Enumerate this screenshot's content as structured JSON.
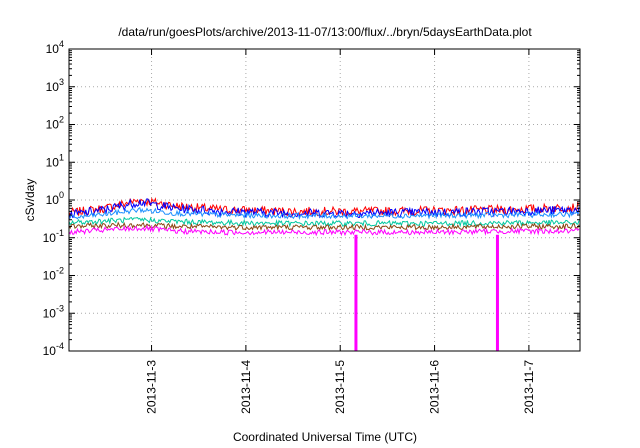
{
  "chart_data": {
    "type": "line",
    "title": "/data/run/goesPlots/archive/2013-11-07/13:00/flux/../bryn/5daysEarthData.plot",
    "xlabel": "Coordinated Universal Time (UTC)",
    "ylabel": "cSv/day",
    "yscale": "log",
    "ylim": [
      0.0001,
      10000
    ],
    "xlim": [
      "2013-11-02T03:00",
      "2013-11-07T13:00"
    ],
    "x_ticks": [
      "2013-11-3",
      "2013-11-4",
      "2013-11-5",
      "2013-11-6",
      "2013-11-7"
    ],
    "y_ticks": [
      {
        "base": "10",
        "exp": "-4"
      },
      {
        "base": "10",
        "exp": "-3"
      },
      {
        "base": "10",
        "exp": "-2"
      },
      {
        "base": "10",
        "exp": "-1"
      },
      {
        "base": "10",
        "exp": "0"
      },
      {
        "base": "10",
        "exp": "1"
      },
      {
        "base": "10",
        "exp": "2"
      },
      {
        "base": "10",
        "exp": "3"
      },
      {
        "base": "10",
        "exp": "4"
      }
    ],
    "grid": true,
    "legend": "none",
    "series": [
      {
        "color": "#ff0000",
        "x": [
          "2013-11-02T03:00",
          "2013-11-02T12:00",
          "2013-11-02T21:00",
          "2013-11-03T06:00",
          "2013-11-03T18:00",
          "2013-11-04T12:00",
          "2013-11-05T06:00",
          "2013-11-06T00:00",
          "2013-11-06T18:00",
          "2013-11-07T13:00"
        ],
        "y": [
          0.45,
          0.6,
          1.0,
          0.7,
          0.55,
          0.5,
          0.5,
          0.52,
          0.55,
          0.65
        ]
      },
      {
        "color": "#0000ff",
        "x": [
          "2013-11-02T03:00",
          "2013-11-02T12:00",
          "2013-11-02T21:00",
          "2013-11-03T06:00",
          "2013-11-03T18:00",
          "2013-11-04T12:00",
          "2013-11-05T06:00",
          "2013-11-06T00:00",
          "2013-11-06T18:00",
          "2013-11-07T13:00"
        ],
        "y": [
          0.4,
          0.55,
          0.9,
          0.6,
          0.5,
          0.45,
          0.45,
          0.47,
          0.5,
          0.55
        ]
      },
      {
        "color": "#1e90ff",
        "x": [
          "2013-11-02T03:00",
          "2013-11-02T12:00",
          "2013-11-02T21:00",
          "2013-11-03T06:00",
          "2013-11-03T18:00",
          "2013-11-04T12:00",
          "2013-11-05T06:00",
          "2013-11-06T00:00",
          "2013-11-06T18:00",
          "2013-11-07T13:00"
        ],
        "y": [
          0.33,
          0.42,
          0.55,
          0.45,
          0.4,
          0.38,
          0.38,
          0.39,
          0.4,
          0.42
        ]
      },
      {
        "color": "#00c8a0",
        "x": [
          "2013-11-02T03:00",
          "2013-11-02T12:00",
          "2013-11-02T21:00",
          "2013-11-03T06:00",
          "2013-11-03T18:00",
          "2013-11-04T12:00",
          "2013-11-05T06:00",
          "2013-11-06T00:00",
          "2013-11-06T18:00",
          "2013-11-07T13:00"
        ],
        "y": [
          0.25,
          0.28,
          0.3,
          0.27,
          0.25,
          0.24,
          0.24,
          0.24,
          0.25,
          0.25
        ]
      },
      {
        "color": "#8b4513",
        "x": [
          "2013-11-02T03:00",
          "2013-11-02T12:00",
          "2013-11-02T21:00",
          "2013-11-03T06:00",
          "2013-11-03T18:00",
          "2013-11-04T12:00",
          "2013-11-05T06:00",
          "2013-11-06T00:00",
          "2013-11-06T18:00",
          "2013-11-07T13:00"
        ],
        "y": [
          0.2,
          0.21,
          0.22,
          0.2,
          0.19,
          0.19,
          0.19,
          0.19,
          0.2,
          0.2
        ]
      },
      {
        "color": "#ff00ff",
        "x": [
          "2013-11-02T03:00",
          "2013-11-02T12:00",
          "2013-11-02T21:00",
          "2013-11-03T06:00",
          "2013-11-03T18:00",
          "2013-11-04T12:00",
          "2013-11-05T06:00",
          "2013-11-06T00:00",
          "2013-11-06T18:00",
          "2013-11-07T13:00"
        ],
        "y": [
          0.14,
          0.16,
          0.18,
          0.15,
          0.14,
          0.14,
          0.14,
          0.14,
          0.15,
          0.15
        ]
      }
    ],
    "annotations": [
      {
        "type": "dropout",
        "color": "#ff00ff",
        "x": "2013-11-05T04:00"
      },
      {
        "type": "dropout",
        "color": "#ff00ff",
        "x": "2013-11-06T16:00"
      }
    ]
  }
}
